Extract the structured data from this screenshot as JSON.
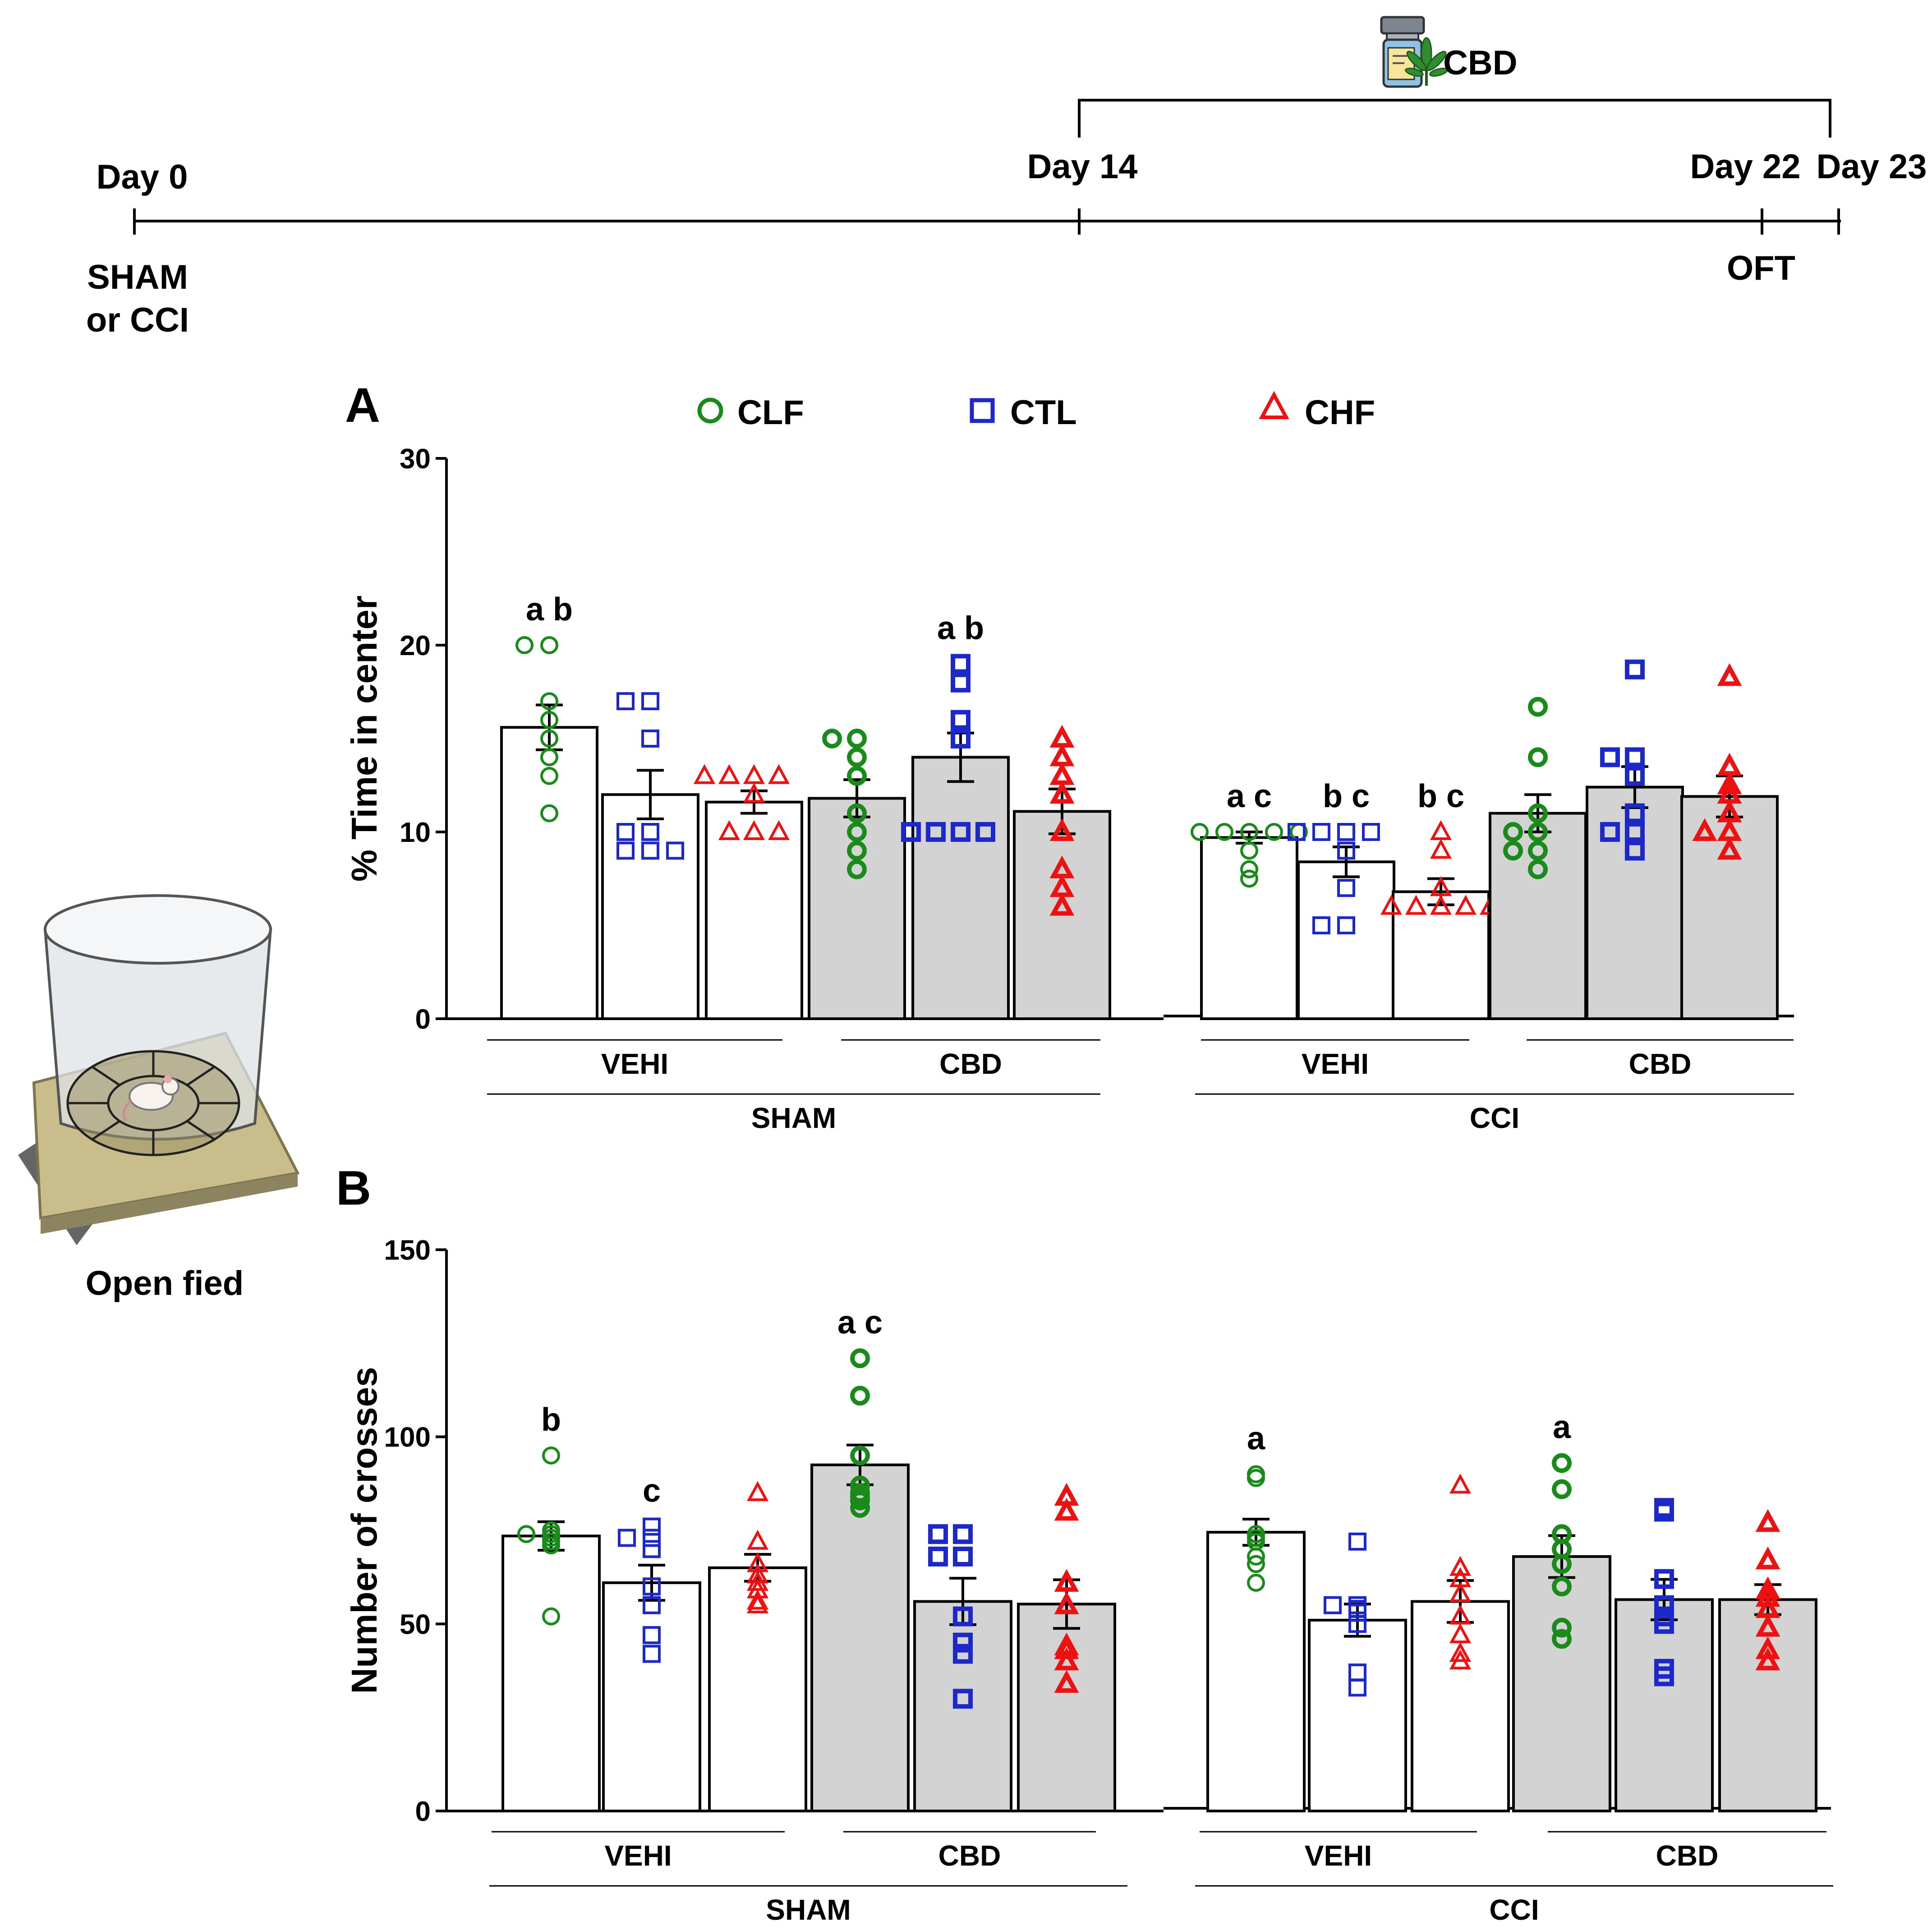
{
  "timeline": {
    "day0": "Day 0",
    "day14": "Day 14",
    "day22": "Day 22",
    "day23": "Day 23",
    "sham_line1": "SHAM",
    "sham_line2": "or CCI",
    "oft": "OFT",
    "cbd_label": "CBD"
  },
  "apparatus": {
    "caption": "Open fied"
  },
  "legend": [
    {
      "name": "CLF",
      "marker": "circle",
      "color": "#1a8a1a"
    },
    {
      "name": "CTL",
      "marker": "square",
      "color": "#1c28c8"
    },
    {
      "name": "CHF",
      "marker": "triangle",
      "color": "#ee1111"
    }
  ],
  "colors": {
    "vehicle_bar": "#ffffff",
    "cbd_bar": "#d3d3d3"
  },
  "chart_data": [
    {
      "panel_label": "A",
      "type": "bar",
      "ylabel": "% Time in center",
      "ylim": [
        0,
        30
      ],
      "yticks": [
        "0",
        "10",
        "20",
        "30"
      ],
      "groups": [
        "SHAM",
        "CCI"
      ],
      "treatments": [
        "VEHI",
        "CBD"
      ],
      "categories": [
        "SHAM-VEHI-CLF",
        "SHAM-VEHI-CTL",
        "SHAM-VEHI-CHF",
        "SHAM-CBD-CLF",
        "SHAM-CBD-CTL",
        "SHAM-CBD-CHF",
        "CCI-VEHI-CLF",
        "CCI-VEHI-CTL",
        "CCI-VEHI-CHF",
        "CCI-CBD-CLF",
        "CCI-CBD-CTL",
        "CCI-CBD-CHF"
      ],
      "bars": [
        {
          "group": "SHAM",
          "treatment": "VEHI",
          "diet": "CLF",
          "mean": 15.6,
          "sem": 1.2,
          "sig": "a b",
          "points": [
            20,
            20,
            17,
            16,
            15,
            14,
            13,
            11
          ]
        },
        {
          "group": "SHAM",
          "treatment": "VEHI",
          "diet": "CTL",
          "mean": 12.0,
          "sem": 1.3,
          "sig": "",
          "points": [
            17,
            17,
            15,
            10,
            10,
            9,
            9,
            9
          ]
        },
        {
          "group": "SHAM",
          "treatment": "VEHI",
          "diet": "CHF",
          "mean": 11.6,
          "sem": 0.6,
          "sig": "",
          "points": [
            13,
            13,
            13,
            13,
            12,
            10,
            10,
            10
          ]
        },
        {
          "group": "SHAM",
          "treatment": "CBD",
          "diet": "CLF",
          "mean": 11.8,
          "sem": 1.0,
          "sig": "",
          "points": [
            15,
            15,
            14,
            13,
            11,
            10,
            9,
            8
          ]
        },
        {
          "group": "SHAM",
          "treatment": "CBD",
          "diet": "CTL",
          "mean": 14.0,
          "sem": 1.3,
          "sig": "a b",
          "points": [
            19,
            18,
            16,
            15,
            10,
            10,
            10,
            10
          ]
        },
        {
          "group": "SHAM",
          "treatment": "CBD",
          "diet": "CHF",
          "mean": 11.1,
          "sem": 1.2,
          "sig": "",
          "points": [
            15,
            14,
            13,
            12,
            10,
            8,
            7,
            6
          ]
        },
        {
          "group": "CCI",
          "treatment": "VEHI",
          "diet": "CLF",
          "mean": 9.7,
          "sem": 0.3,
          "sig": "a c",
          "points": [
            10,
            10,
            10,
            10,
            10,
            9,
            8,
            7.5
          ]
        },
        {
          "group": "CCI",
          "treatment": "VEHI",
          "diet": "CTL",
          "mean": 8.4,
          "sem": 0.8,
          "sig": "b c",
          "points": [
            10,
            10,
            10,
            10,
            9,
            7,
            5,
            5
          ]
        },
        {
          "group": "CCI",
          "treatment": "VEHI",
          "diet": "CHF",
          "mean": 6.8,
          "sem": 0.7,
          "sig": "b c",
          "points": [
            10,
            9,
            7,
            6,
            6,
            6,
            6,
            6
          ]
        },
        {
          "group": "CCI",
          "treatment": "CBD",
          "diet": "CLF",
          "mean": 11.0,
          "sem": 1.0,
          "sig": "",
          "points": [
            16.7,
            14,
            11,
            10,
            10,
            9,
            9,
            8
          ]
        },
        {
          "group": "CCI",
          "treatment": "CBD",
          "diet": "CTL",
          "mean": 12.4,
          "sem": 1.1,
          "sig": "",
          "points": [
            18.7,
            14,
            14,
            13,
            11,
            10,
            10,
            9
          ]
        },
        {
          "group": "CCI",
          "treatment": "CBD",
          "diet": "CHF",
          "mean": 11.9,
          "sem": 1.1,
          "sig": "",
          "points": [
            18.3,
            13.5,
            12.5,
            12,
            11,
            10,
            10,
            9
          ]
        }
      ]
    },
    {
      "panel_label": "B",
      "type": "bar",
      "ylabel": "Number of crosses",
      "ylim": [
        0,
        150
      ],
      "yticks": [
        "0",
        "50",
        "100",
        "150"
      ],
      "groups": [
        "SHAM",
        "CCI"
      ],
      "treatments": [
        "VEHI",
        "CBD"
      ],
      "categories": [
        "SHAM-VEHI-CLF",
        "SHAM-VEHI-CTL",
        "SHAM-VEHI-CHF",
        "SHAM-CBD-CLF",
        "SHAM-CBD-CTL",
        "SHAM-CBD-CHF",
        "CCI-VEHI-CLF",
        "CCI-VEHI-CTL",
        "CCI-VEHI-CHF",
        "CCI-CBD-CLF",
        "CCI-CBD-CTL",
        "CCI-CBD-CHF"
      ],
      "bars": [
        {
          "group": "SHAM",
          "treatment": "VEHI",
          "diet": "CLF",
          "mean": 73.5,
          "sem": 3.8,
          "sig": "b",
          "points": [
            95,
            75,
            74,
            74,
            73,
            72,
            71,
            52
          ]
        },
        {
          "group": "SHAM",
          "treatment": "VEHI",
          "diet": "CTL",
          "mean": 61.0,
          "sem": 4.7,
          "sig": "c",
          "points": [
            76,
            73,
            73,
            70,
            60,
            55,
            47,
            42
          ]
        },
        {
          "group": "SHAM",
          "treatment": "VEHI",
          "diet": "CHF",
          "mean": 65.0,
          "sem": 3.6,
          "sig": "",
          "points": [
            85,
            72,
            66,
            63,
            61,
            59,
            56,
            55
          ]
        },
        {
          "group": "SHAM",
          "treatment": "CBD",
          "diet": "CLF",
          "mean": 92.5,
          "sem": 5.3,
          "sig": "a c",
          "points": [
            121,
            111,
            95,
            87,
            85,
            84,
            83,
            81
          ]
        },
        {
          "group": "SHAM",
          "treatment": "CBD",
          "diet": "CTL",
          "mean": 56.0,
          "sem": 6.2,
          "sig": "",
          "points": [
            74,
            74,
            68,
            68,
            52,
            45,
            42,
            30
          ]
        },
        {
          "group": "SHAM",
          "treatment": "CBD",
          "diet": "CHF",
          "mean": 55.3,
          "sem": 6.5,
          "sig": "",
          "points": [
            84,
            80,
            61,
            55,
            44,
            43,
            40,
            34
          ]
        },
        {
          "group": "CCI",
          "treatment": "VEHI",
          "diet": "CLF",
          "mean": 74.5,
          "sem": 3.5,
          "sig": "a",
          "points": [
            90,
            89,
            74,
            73,
            72,
            68,
            66,
            61
          ]
        },
        {
          "group": "CCI",
          "treatment": "VEHI",
          "diet": "CTL",
          "mean": 51.0,
          "sem": 4.3,
          "sig": "",
          "points": [
            72,
            55,
            55,
            54,
            53,
            50,
            37,
            33
          ]
        },
        {
          "group": "CCI",
          "treatment": "VEHI",
          "diet": "CHF",
          "mean": 56.0,
          "sem": 5.6,
          "sig": "",
          "points": [
            87,
            65,
            62,
            58,
            52,
            47,
            42,
            40
          ]
        },
        {
          "group": "CCI",
          "treatment": "CBD",
          "diet": "CLF",
          "mean": 68.0,
          "sem": 5.6,
          "sig": "a",
          "points": [
            93,
            86,
            74,
            70,
            66,
            60,
            49,
            46
          ]
        },
        {
          "group": "CCI",
          "treatment": "CBD",
          "diet": "CTL",
          "mean": 56.5,
          "sem": 5.4,
          "sig": "",
          "points": [
            81,
            80,
            62,
            55,
            52,
            50,
            38,
            36
          ]
        },
        {
          "group": "CCI",
          "treatment": "CBD",
          "diet": "CHF",
          "mean": 56.5,
          "sem": 4.0,
          "sig": "",
          "points": [
            77,
            67,
            59,
            57,
            54,
            49,
            43,
            40
          ]
        }
      ]
    }
  ]
}
